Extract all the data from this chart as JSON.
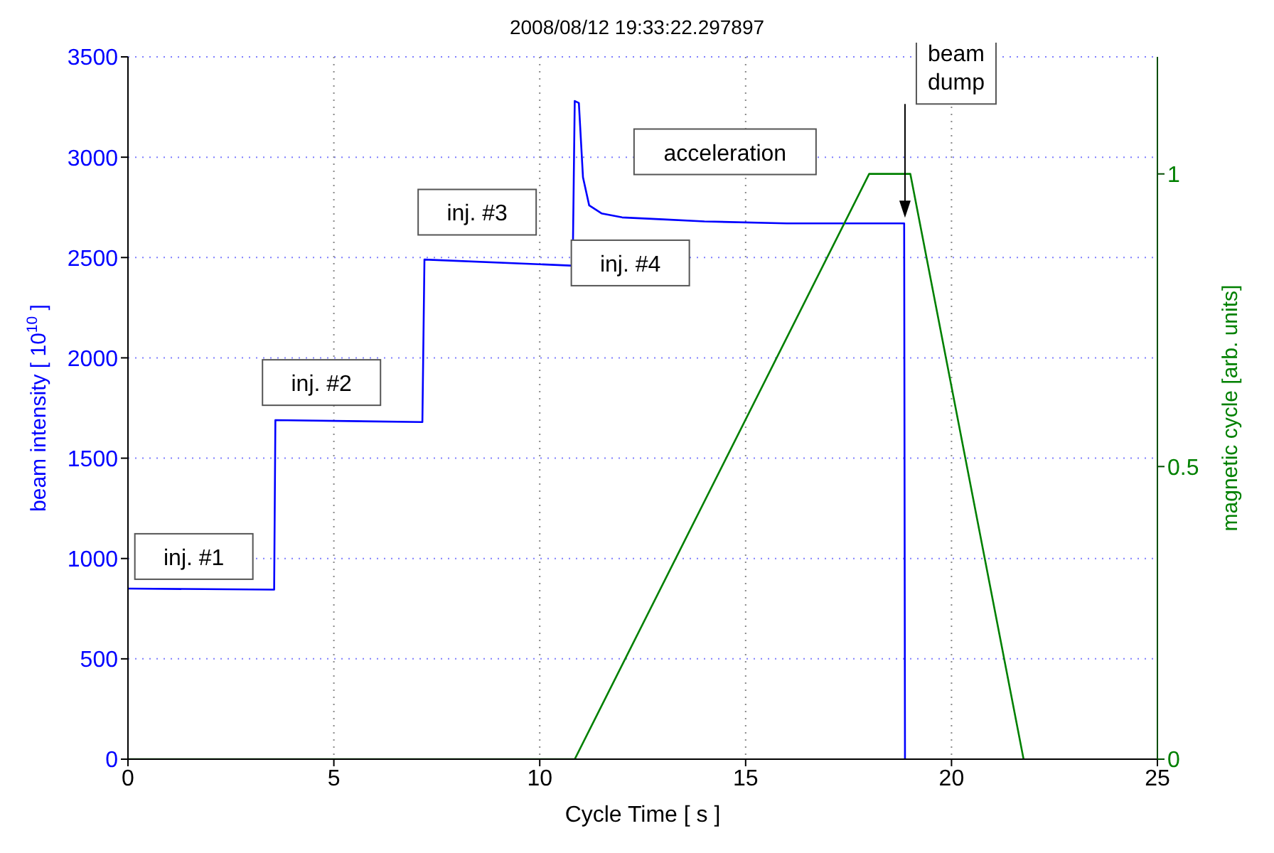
{
  "chart_data": {
    "type": "line",
    "title": "2008/08/12 19:33:22.297897",
    "xlabel": "Cycle Time [ s ]",
    "ylabel": "beam intensity [ 10$^{10}$ ]",
    "y2label": "magnetic cycle [arb. units]",
    "xlim": [
      0,
      25
    ],
    "xticks": [
      0,
      5,
      10,
      15,
      20,
      25
    ],
    "ylim": [
      0,
      3500
    ],
    "yticks": [
      0,
      500,
      1000,
      1500,
      2000,
      2500,
      3000,
      3500
    ],
    "y2lim": [
      0,
      1.2
    ],
    "y2ticks": [
      0,
      0.5,
      1
    ],
    "grid": true,
    "marker": "none",
    "line_style": "solid",
    "legend": false,
    "series": [
      {
        "color": "#0000ff",
        "x": [
          0,
          3.55,
          3.58,
          7.15,
          7.2,
          10.75,
          10.8,
          10.85,
          10.95,
          11.05,
          11.2,
          11.5,
          12,
          13,
          14,
          16,
          18.85,
          18.87
        ],
        "values": [
          850,
          845,
          1690,
          1680,
          2490,
          2460,
          2460,
          3280,
          3270,
          2900,
          2760,
          2720,
          2700,
          2690,
          2680,
          2670,
          2670,
          0
        ]
      },
      {
        "color": "#008000",
        "axis": "y2",
        "x": [
          0,
          10.85,
          18,
          19,
          21.75
        ],
        "values": [
          0,
          0,
          1,
          1,
          0
        ]
      }
    ],
    "annotations": [
      "inj. #1",
      "inj. #2",
      "inj. #3",
      "inj. #4",
      "acceleration",
      {
        "text": "beam dump",
        "x": 18.87,
        "y": 2670
      }
    ]
  }
}
